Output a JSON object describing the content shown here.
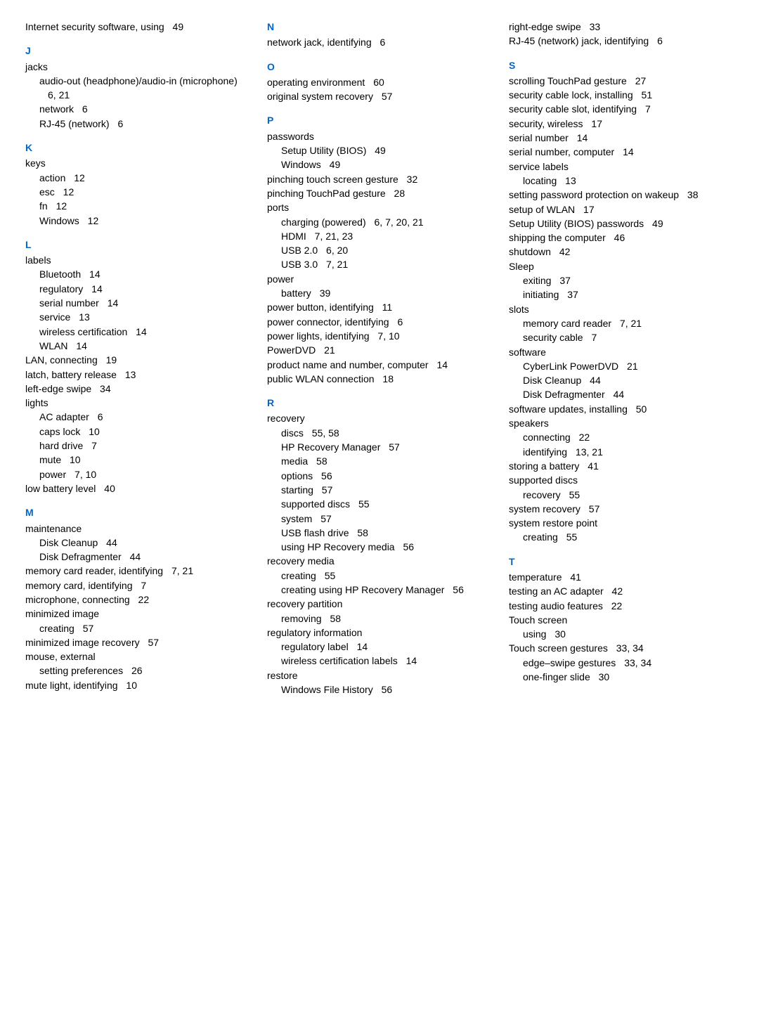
{
  "columns": [
    {
      "groups": [
        {
          "letter": null,
          "entries": [
            {
              "text": "Internet security software, using",
              "pages": "49",
              "level": 0
            }
          ]
        },
        {
          "letter": "J",
          "entries": [
            {
              "text": "jacks",
              "pages": "",
              "level": 0
            },
            {
              "text": "audio-out (headphone)/audio-in (microphone)",
              "pages": "6, 21",
              "level": 1
            },
            {
              "text": "network",
              "pages": "6",
              "level": 1
            },
            {
              "text": "RJ-45 (network)",
              "pages": "6",
              "level": 1
            }
          ]
        },
        {
          "letter": "K",
          "entries": [
            {
              "text": "keys",
              "pages": "",
              "level": 0
            },
            {
              "text": "action",
              "pages": "12",
              "level": 1
            },
            {
              "text": "esc",
              "pages": "12",
              "level": 1
            },
            {
              "text": "fn",
              "pages": "12",
              "level": 1
            },
            {
              "text": "Windows",
              "pages": "12",
              "level": 1
            }
          ]
        },
        {
          "letter": "L",
          "entries": [
            {
              "text": "labels",
              "pages": "",
              "level": 0
            },
            {
              "text": "Bluetooth",
              "pages": "14",
              "level": 1
            },
            {
              "text": "regulatory",
              "pages": "14",
              "level": 1
            },
            {
              "text": "serial number",
              "pages": "14",
              "level": 1
            },
            {
              "text": "service",
              "pages": "13",
              "level": 1
            },
            {
              "text": "wireless certification",
              "pages": "14",
              "level": 1
            },
            {
              "text": "WLAN",
              "pages": "14",
              "level": 1
            },
            {
              "text": "LAN, connecting",
              "pages": "19",
              "level": 0
            },
            {
              "text": "latch, battery release",
              "pages": "13",
              "level": 0
            },
            {
              "text": "left-edge swipe",
              "pages": "34",
              "level": 0
            },
            {
              "text": "lights",
              "pages": "",
              "level": 0
            },
            {
              "text": "AC adapter",
              "pages": "6",
              "level": 1
            },
            {
              "text": "caps lock",
              "pages": "10",
              "level": 1
            },
            {
              "text": "hard drive",
              "pages": "7",
              "level": 1
            },
            {
              "text": "mute",
              "pages": "10",
              "level": 1
            },
            {
              "text": "power",
              "pages": "7, 10",
              "level": 1
            },
            {
              "text": "low battery level",
              "pages": "40",
              "level": 0
            }
          ]
        },
        {
          "letter": "M",
          "entries": [
            {
              "text": "maintenance",
              "pages": "",
              "level": 0
            },
            {
              "text": "Disk Cleanup",
              "pages": "44",
              "level": 1
            },
            {
              "text": "Disk Defragmenter",
              "pages": "44",
              "level": 1
            },
            {
              "text": "memory card reader, identifying",
              "pages": "7, 21",
              "level": 0
            },
            {
              "text": "memory card, identifying",
              "pages": "7",
              "level": 0
            },
            {
              "text": "microphone, connecting",
              "pages": "22",
              "level": 0
            },
            {
              "text": "minimized image",
              "pages": "",
              "level": 0
            },
            {
              "text": "creating",
              "pages": "57",
              "level": 1
            },
            {
              "text": "minimized image recovery",
              "pages": "57",
              "level": 0
            },
            {
              "text": "mouse, external",
              "pages": "",
              "level": 0
            },
            {
              "text": "setting preferences",
              "pages": "26",
              "level": 1
            },
            {
              "text": "mute light, identifying",
              "pages": "10",
              "level": 0
            }
          ]
        }
      ]
    },
    {
      "groups": [
        {
          "letter": "N",
          "entries": [
            {
              "text": "network jack, identifying",
              "pages": "6",
              "level": 0
            }
          ]
        },
        {
          "letter": "O",
          "entries": [
            {
              "text": "operating environment",
              "pages": "60",
              "level": 0
            },
            {
              "text": "original system recovery",
              "pages": "57",
              "level": 0
            }
          ]
        },
        {
          "letter": "P",
          "entries": [
            {
              "text": "passwords",
              "pages": "",
              "level": 0
            },
            {
              "text": "Setup Utility (BIOS)",
              "pages": "49",
              "level": 1
            },
            {
              "text": "Windows",
              "pages": "49",
              "level": 1
            },
            {
              "text": "pinching touch screen gesture",
              "pages": "32",
              "level": 0
            },
            {
              "text": "pinching TouchPad gesture",
              "pages": "28",
              "level": 0
            },
            {
              "text": "ports",
              "pages": "",
              "level": 0
            },
            {
              "text": "charging (powered)",
              "pages": "6, 7, 20, 21",
              "level": 1
            },
            {
              "text": "HDMI",
              "pages": "7, 21, 23",
              "level": 1
            },
            {
              "text": "USB 2.0",
              "pages": "6, 20",
              "level": 1
            },
            {
              "text": "USB 3.0",
              "pages": "7, 21",
              "level": 1
            },
            {
              "text": "power",
              "pages": "",
              "level": 0
            },
            {
              "text": "battery",
              "pages": "39",
              "level": 1
            },
            {
              "text": "power button, identifying",
              "pages": "11",
              "level": 0
            },
            {
              "text": "power connector, identifying",
              "pages": "6",
              "level": 0
            },
            {
              "text": "power lights, identifying",
              "pages": "7, 10",
              "level": 0
            },
            {
              "text": "PowerDVD",
              "pages": "21",
              "level": 0
            },
            {
              "text": "product name and number, computer",
              "pages": "14",
              "level": 0
            },
            {
              "text": "public WLAN connection",
              "pages": "18",
              "level": 0
            }
          ]
        },
        {
          "letter": "R",
          "entries": [
            {
              "text": "recovery",
              "pages": "",
              "level": 0
            },
            {
              "text": "discs",
              "pages": "55, 58",
              "level": 1
            },
            {
              "text": "HP Recovery Manager",
              "pages": "57",
              "level": 1
            },
            {
              "text": "media",
              "pages": "58",
              "level": 1
            },
            {
              "text": "options",
              "pages": "56",
              "level": 1
            },
            {
              "text": "starting",
              "pages": "57",
              "level": 1
            },
            {
              "text": "supported discs",
              "pages": "55",
              "level": 1
            },
            {
              "text": "system",
              "pages": "57",
              "level": 1
            },
            {
              "text": "USB flash drive",
              "pages": "58",
              "level": 1
            },
            {
              "text": "using HP Recovery media",
              "pages": "56",
              "level": 1
            },
            {
              "text": "recovery media",
              "pages": "",
              "level": 0
            },
            {
              "text": "creating",
              "pages": "55",
              "level": 1
            },
            {
              "text": "creating using HP Recovery Manager",
              "pages": "56",
              "level": 1
            },
            {
              "text": "recovery partition",
              "pages": "",
              "level": 0
            },
            {
              "text": "removing",
              "pages": "58",
              "level": 1
            },
            {
              "text": "regulatory information",
              "pages": "",
              "level": 0
            },
            {
              "text": "regulatory label",
              "pages": "14",
              "level": 1
            },
            {
              "text": "wireless certification labels",
              "pages": "14",
              "level": 1
            },
            {
              "text": "restore",
              "pages": "",
              "level": 0
            },
            {
              "text": "Windows File History",
              "pages": "56",
              "level": 1
            }
          ]
        }
      ]
    },
    {
      "groups": [
        {
          "letter": null,
          "entries": [
            {
              "text": "right-edge swipe",
              "pages": "33",
              "level": 0
            },
            {
              "text": "RJ-45 (network) jack, identifying",
              "pages": "6",
              "level": 0
            }
          ]
        },
        {
          "letter": "S",
          "entries": [
            {
              "text": "scrolling TouchPad gesture",
              "pages": "27",
              "level": 0
            },
            {
              "text": "security cable lock, installing",
              "pages": "51",
              "level": 0
            },
            {
              "text": "security cable slot, identifying",
              "pages": "7",
              "level": 0
            },
            {
              "text": "security, wireless",
              "pages": "17",
              "level": 0
            },
            {
              "text": "serial number",
              "pages": "14",
              "level": 0
            },
            {
              "text": "serial number, computer",
              "pages": "14",
              "level": 0
            },
            {
              "text": "service labels",
              "pages": "",
              "level": 0
            },
            {
              "text": "locating",
              "pages": "13",
              "level": 1
            },
            {
              "text": "setting password protection on wakeup",
              "pages": "38",
              "level": 0
            },
            {
              "text": "setup of WLAN",
              "pages": "17",
              "level": 0
            },
            {
              "text": "Setup Utility (BIOS) passwords",
              "pages": "49",
              "level": 0
            },
            {
              "text": "shipping the computer",
              "pages": "46",
              "level": 0
            },
            {
              "text": "shutdown",
              "pages": "42",
              "level": 0
            },
            {
              "text": "Sleep",
              "pages": "",
              "level": 0
            },
            {
              "text": "exiting",
              "pages": "37",
              "level": 1
            },
            {
              "text": "initiating",
              "pages": "37",
              "level": 1
            },
            {
              "text": "slots",
              "pages": "",
              "level": 0
            },
            {
              "text": "memory card reader",
              "pages": "7, 21",
              "level": 1
            },
            {
              "text": "security cable",
              "pages": "7",
              "level": 1
            },
            {
              "text": "software",
              "pages": "",
              "level": 0
            },
            {
              "text": "CyberLink PowerDVD",
              "pages": "21",
              "level": 1
            },
            {
              "text": "Disk Cleanup",
              "pages": "44",
              "level": 1
            },
            {
              "text": "Disk Defragmenter",
              "pages": "44",
              "level": 1
            },
            {
              "text": "software updates, installing",
              "pages": "50",
              "level": 0
            },
            {
              "text": "speakers",
              "pages": "",
              "level": 0
            },
            {
              "text": "connecting",
              "pages": "22",
              "level": 1
            },
            {
              "text": "identifying",
              "pages": "13, 21",
              "level": 1
            },
            {
              "text": "storing a battery",
              "pages": "41",
              "level": 0
            },
            {
              "text": "supported discs",
              "pages": "",
              "level": 0
            },
            {
              "text": "recovery",
              "pages": "55",
              "level": 1
            },
            {
              "text": "system recovery",
              "pages": "57",
              "level": 0
            },
            {
              "text": "system restore point",
              "pages": "",
              "level": 0
            },
            {
              "text": "creating",
              "pages": "55",
              "level": 1
            }
          ]
        },
        {
          "letter": "T",
          "entries": [
            {
              "text": "temperature",
              "pages": "41",
              "level": 0
            },
            {
              "text": "testing an AC adapter",
              "pages": "42",
              "level": 0
            },
            {
              "text": "testing audio features",
              "pages": "22",
              "level": 0
            },
            {
              "text": "Touch screen",
              "pages": "",
              "level": 0
            },
            {
              "text": "using",
              "pages": "30",
              "level": 1
            },
            {
              "text": "Touch screen gestures",
              "pages": "33, 34",
              "level": 0
            },
            {
              "text": "edge–swipe gestures",
              "pages": "33, 34",
              "level": 1
            },
            {
              "text": "one-finger slide",
              "pages": "30",
              "level": 1
            }
          ]
        }
      ]
    }
  ]
}
